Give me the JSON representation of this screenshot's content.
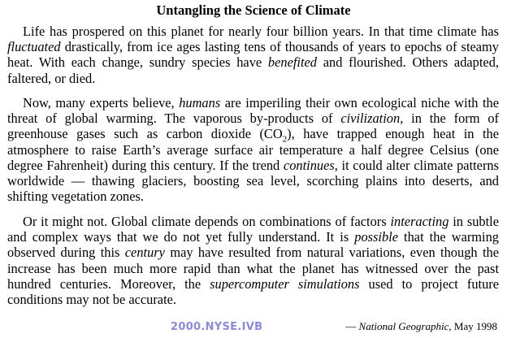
{
  "title": "Untangling the Science of Climate",
  "paragraphs": [
    [
      {
        "t": "Life has prospered on this planet for nearly four billion years. In that time climate has "
      },
      {
        "t": "fluctuated",
        "i": true
      },
      {
        "t": " drastically, from ice ages lasting tens of thousands of years to epochs of steamy heat. With each change, sundry species have "
      },
      {
        "t": "benefited",
        "i": true
      },
      {
        "t": " and flourished. Others adapted, faltered, or died."
      }
    ],
    [
      {
        "t": "Now, many experts believe, "
      },
      {
        "t": "humans",
        "i": true
      },
      {
        "t": " are imperiling their own ecological niche with the threat of global warming. The vaporous by-products of "
      },
      {
        "t": "civilization",
        "i": true
      },
      {
        "t": ", in the form of greenhouse gases such as carbon dioxide (CO"
      },
      {
        "t": "2",
        "sub": true
      },
      {
        "t": "), have trapped enough heat in the atmosphere to raise Earth’s average surface air temperature a half degree Celsius (one degree Fahrenheit) during this century. If the trend "
      },
      {
        "t": "continues",
        "i": true
      },
      {
        "t": ", it could alter climate patterns worldwide — thawing glaciers, boosting sea level, scorching plains into deserts, and shifting vegetation zones."
      }
    ],
    [
      {
        "t": "Or it might not. Global climate depends on combinations of factors "
      },
      {
        "t": "interacting",
        "i": true
      },
      {
        "t": " in subtle and complex ways that we do not yet fully understand. It is "
      },
      {
        "t": "possible",
        "i": true
      },
      {
        "t": " that the warming observed during this "
      },
      {
        "t": "century",
        "i": true
      },
      {
        "t": " may have resulted from natural variations, even though the increase has been much more rapid than what the planet has witnessed over the past hundred centuries. Moreover, the "
      },
      {
        "t": "supercomputer simulations",
        "i": true
      },
      {
        "t": " used to project future conditions may not be accurate."
      }
    ]
  ],
  "source": {
    "dash": "— ",
    "publication": "National Geographic",
    "date": ", May 1998"
  },
  "watermark": "2000.NYSE.IVB"
}
